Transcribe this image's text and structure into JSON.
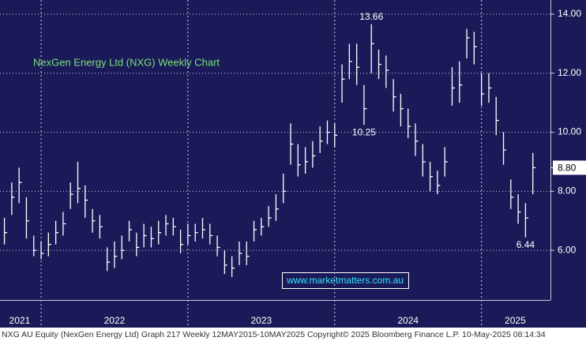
{
  "chart_data": {
    "type": "ohlc",
    "title": "NexGen Energy Ltd (NXG) Weekly Chart",
    "watermark": "www.marketmatters.com.au",
    "footer": "NXG AU Equity (NexGen Energy Ltd) Graph 217  Weekly 12MAY2015-10MAY2025 Copyright© 2025 Bloomberg Finance L.P. 10-May-2025 08:14:34",
    "color": "#ffffff",
    "xlim": [
      2021.72,
      2025.47
    ],
    "ylim": [
      4.32,
      14.48
    ],
    "grid": true,
    "yticks": [
      {
        "value": 6,
        "label": "6.00"
      },
      {
        "value": 8,
        "label": "8.00"
      },
      {
        "value": 10,
        "label": "10.00"
      },
      {
        "value": 12,
        "label": "12.00"
      },
      {
        "value": 14,
        "label": "14.00"
      }
    ],
    "xticks": [
      {
        "value": 2021.854,
        "label": "2021"
      },
      {
        "value": 2022.5,
        "label": "2022"
      },
      {
        "value": 2023.5,
        "label": "2023"
      },
      {
        "value": 2024.5,
        "label": "2024"
      },
      {
        "value": 2025.23,
        "label": "2025"
      }
    ],
    "year_breaks": [
      2022,
      2023,
      2024,
      2025
    ],
    "last_price": {
      "value": 8.8,
      "label": "8.80"
    },
    "annotations": [
      {
        "x": 2024.25,
        "value": 13.66,
        "label": "13.66"
      },
      {
        "x": 2024.2,
        "value": 10.25,
        "label": "10.25"
      },
      {
        "x": 2025.3,
        "value": 6.44,
        "label": "6.44"
      }
    ],
    "x": [
      2021.75,
      2021.8,
      2021.85,
      2021.9,
      2021.95,
      2022,
      2022.05,
      2022.1,
      2022.15,
      2022.2,
      2022.25,
      2022.3,
      2022.35,
      2022.4,
      2022.45,
      2022.5,
      2022.55,
      2022.6,
      2022.65,
      2022.7,
      2022.75,
      2022.8,
      2022.85,
      2022.9,
      2022.95,
      2023,
      2023.05,
      2023.1,
      2023.15,
      2023.2,
      2023.25,
      2023.3,
      2023.35,
      2023.4,
      2023.45,
      2023.5,
      2023.55,
      2023.6,
      2023.65,
      2023.7,
      2023.75,
      2023.8,
      2023.85,
      2023.9,
      2023.95,
      2024,
      2024.05,
      2024.1,
      2024.15,
      2024.2,
      2024.25,
      2024.3,
      2024.35,
      2024.4,
      2024.45,
      2024.5,
      2024.55,
      2024.6,
      2024.65,
      2024.7,
      2024.75,
      2024.8,
      2024.85,
      2024.9,
      2024.95,
      2025,
      2025.05,
      2025.1,
      2025.15,
      2025.2,
      2025.25,
      2025.3,
      2025.35
    ],
    "high": [
      7.1,
      8.3,
      8.8,
      7.8,
      6.5,
      6.3,
      6.6,
      7.0,
      7.3,
      8.3,
      9.0,
      8.2,
      7.4,
      7.2,
      6.1,
      6.3,
      6.5,
      7.0,
      6.6,
      6.9,
      6.8,
      7.0,
      7.2,
      7.1,
      6.7,
      6.9,
      6.9,
      7.1,
      6.9,
      6.5,
      6.0,
      5.8,
      6.3,
      6.3,
      7.0,
      7.1,
      7.5,
      7.9,
      8.6,
      10.3,
      9.6,
      9.5,
      9.7,
      10.2,
      10.4,
      10.3,
      12.3,
      13.0,
      13.0,
      11.6,
      13.66,
      12.8,
      12.6,
      11.8,
      11.3,
      10.8,
      10.3,
      9.6,
      9.0,
      8.7,
      9.5,
      12.2,
      12.4,
      13.5,
      13.4,
      12.0,
      12.0,
      11.2,
      10.0,
      8.4,
      7.9,
      7.6,
      9.3
    ],
    "low": [
      6.2,
      7.2,
      7.6,
      6.4,
      5.8,
      5.7,
      5.8,
      6.2,
      6.5,
      7.4,
      7.6,
      7.1,
      6.6,
      6.4,
      5.3,
      5.4,
      5.7,
      6.3,
      5.8,
      6.1,
      6.1,
      6.2,
      6.5,
      6.5,
      5.9,
      6.2,
      6.3,
      6.4,
      6.2,
      5.8,
      5.2,
      5.1,
      5.5,
      5.5,
      6.3,
      6.5,
      6.8,
      7.0,
      7.6,
      8.9,
      8.5,
      8.6,
      8.8,
      9.3,
      9.6,
      9.5,
      11.0,
      11.8,
      11.6,
      10.25,
      12.0,
      11.8,
      11.5,
      10.7,
      10.2,
      9.8,
      9.2,
      8.5,
      8.0,
      7.9,
      8.5,
      10.9,
      11.0,
      12.5,
      12.3,
      10.9,
      11.0,
      9.9,
      8.9,
      7.4,
      6.9,
      6.44,
      7.9
    ],
    "close": [
      6.6,
      7.8,
      8.3,
      7.0,
      6.0,
      5.9,
      6.2,
      6.6,
      6.9,
      7.9,
      8.1,
      7.7,
      7.0,
      6.8,
      5.6,
      5.8,
      6.0,
      6.7,
      6.1,
      6.5,
      6.4,
      6.6,
      6.9,
      6.8,
      6.2,
      6.5,
      6.6,
      6.7,
      6.5,
      6.1,
      5.5,
      5.4,
      5.9,
      5.8,
      6.7,
      6.8,
      7.1,
      7.4,
      8.0,
      9.6,
      8.9,
      9.0,
      9.2,
      9.7,
      10.0,
      9.9,
      11.8,
      12.4,
      12.2,
      10.8,
      13.0,
      12.3,
      12.1,
      11.2,
      10.8,
      10.2,
      9.7,
      9.0,
      8.5,
      8.2,
      9.0,
      11.5,
      11.6,
      13.2,
      12.9,
      11.3,
      11.5,
      10.4,
      9.4,
      7.8,
      7.3,
      7.1,
      8.8
    ]
  }
}
